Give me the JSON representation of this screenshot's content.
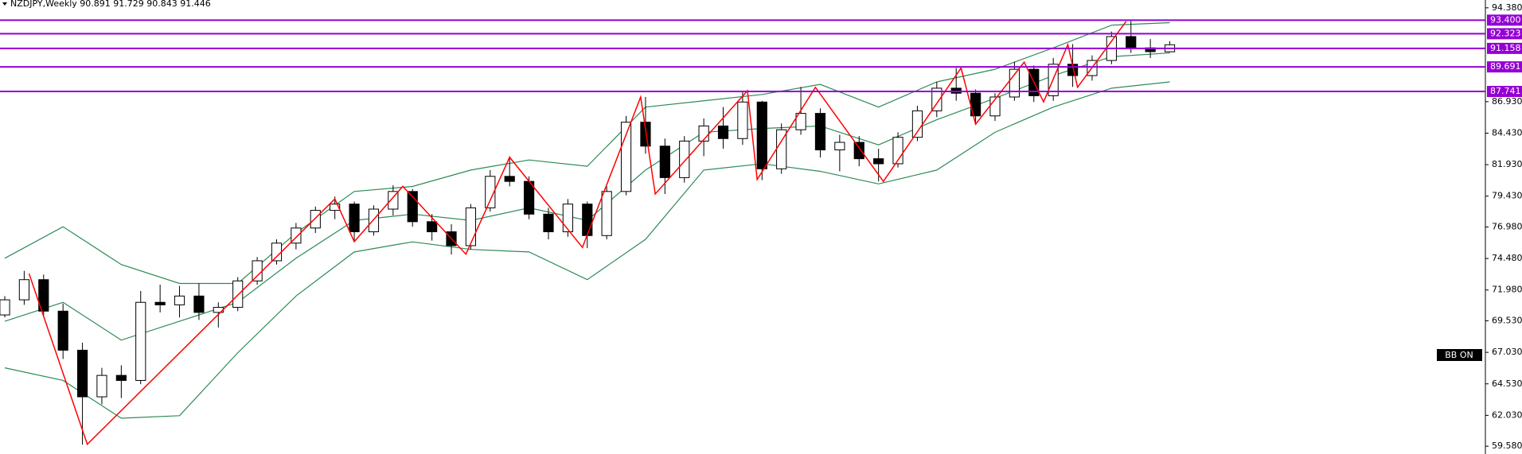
{
  "chart_data": {
    "type": "candlestick",
    "title": "NZDJPY,Weekly  90.891 91.729 90.843 91.446",
    "annotation": "BB ON",
    "x": [
      0,
      4,
      8,
      12,
      16,
      20,
      24,
      28,
      32,
      36,
      40,
      44,
      48,
      52,
      56,
      60,
      64,
      68,
      72,
      76,
      80,
      84,
      88,
      92,
      96,
      100,
      104,
      108,
      112,
      116,
      120,
      124,
      128,
      132,
      136,
      140,
      144,
      148,
      152,
      156,
      160,
      164,
      168,
      172,
      176,
      180,
      184,
      188,
      192,
      196,
      200,
      204,
      208,
      212,
      216,
      220,
      224,
      228,
      232,
      236,
      240
    ],
    "open": [
      70.0,
      71.2,
      72.8,
      70.3,
      67.2,
      63.5,
      65.2,
      64.8,
      71.0,
      70.8,
      71.5,
      70.2,
      70.6,
      72.7,
      74.3,
      75.7,
      76.9,
      78.3,
      78.8,
      76.6,
      78.4,
      79.8,
      77.4,
      76.6,
      75.5,
      78.5,
      81.0,
      80.6,
      78.0,
      76.6,
      78.8,
      76.3,
      79.8,
      85.3,
      83.4,
      80.9,
      83.8,
      85.0,
      84.0,
      86.9,
      81.6,
      84.7,
      86.0,
      83.1,
      83.7,
      82.4,
      82.0,
      84.1,
      86.2,
      88.0,
      87.6,
      85.8,
      87.3,
      89.5,
      87.4,
      89.9,
      89.0,
      90.2,
      92.1,
      91.2,
      90.891
    ],
    "high": [
      71.5,
      73.5,
      73.2,
      70.9,
      67.8,
      65.8,
      66.0,
      71.9,
      72.4,
      72.3,
      72.5,
      71.0,
      73.0,
      74.6,
      76.0,
      77.3,
      78.6,
      79.4,
      79.0,
      78.7,
      80.3,
      80.0,
      78.0,
      77.2,
      78.8,
      81.5,
      82.6,
      81.0,
      78.5,
      79.2,
      79.0,
      80.2,
      85.8,
      87.3,
      84.0,
      84.2,
      85.6,
      86.5,
      87.8,
      87.0,
      85.2,
      88.1,
      86.4,
      84.3,
      84.2,
      83.2,
      84.5,
      86.6,
      88.5,
      89.6,
      87.9,
      87.6,
      90.1,
      89.8,
      90.4,
      91.5,
      90.6,
      92.5,
      93.4,
      91.9,
      91.729
    ],
    "low": [
      69.8,
      70.8,
      69.9,
      66.5,
      59.7,
      62.9,
      63.4,
      64.5,
      70.2,
      69.8,
      69.6,
      69.0,
      70.3,
      72.4,
      74.0,
      75.2,
      76.5,
      77.6,
      75.8,
      76.3,
      77.9,
      77.0,
      75.9,
      74.8,
      75.2,
      78.2,
      80.2,
      77.6,
      76.0,
      76.2,
      75.3,
      76.0,
      79.5,
      82.8,
      79.6,
      80.5,
      82.6,
      83.2,
      83.5,
      80.7,
      81.2,
      84.3,
      82.5,
      81.4,
      81.8,
      80.6,
      81.7,
      83.8,
      85.7,
      87.0,
      85.1,
      85.4,
      87.0,
      86.9,
      87.0,
      88.1,
      88.6,
      89.9,
      90.8,
      90.4,
      90.843
    ],
    "close": [
      71.2,
      72.8,
      70.3,
      67.2,
      63.5,
      65.2,
      64.8,
      71.0,
      70.8,
      71.5,
      70.2,
      70.6,
      72.7,
      74.3,
      75.7,
      76.9,
      78.3,
      78.8,
      76.6,
      78.4,
      79.8,
      77.4,
      76.6,
      75.5,
      78.5,
      81.0,
      80.6,
      78.0,
      76.6,
      78.8,
      76.3,
      79.8,
      85.3,
      83.4,
      80.9,
      83.8,
      85.0,
      84.0,
      86.9,
      81.6,
      84.7,
      86.0,
      83.1,
      83.7,
      82.4,
      82.0,
      84.1,
      86.2,
      88.0,
      87.6,
      85.8,
      87.3,
      89.5,
      87.4,
      89.9,
      89.0,
      90.2,
      92.1,
      91.2,
      90.9,
      91.446
    ],
    "bands": {
      "color": "#2e8b57",
      "x": [
        0,
        12,
        24,
        36,
        48,
        60,
        72,
        84,
        96,
        108,
        120,
        132,
        144,
        156,
        168,
        180,
        192,
        204,
        216,
        228,
        240
      ],
      "upper": [
        74.5,
        77.0,
        74.0,
        72.5,
        72.5,
        76.5,
        79.8,
        80.2,
        81.5,
        82.3,
        81.8,
        86.5,
        87.0,
        87.5,
        88.3,
        86.5,
        88.5,
        89.5,
        91.2,
        93.0,
        93.2
      ],
      "middle": [
        69.5,
        71.0,
        68.0,
        69.5,
        71.0,
        74.5,
        77.5,
        78.0,
        77.5,
        78.5,
        77.5,
        81.5,
        84.5,
        84.8,
        85.0,
        83.5,
        85.5,
        87.2,
        89.0,
        90.5,
        90.8
      ],
      "lower": [
        65.8,
        64.8,
        61.8,
        62.0,
        67.0,
        71.5,
        75.0,
        75.8,
        75.2,
        75.0,
        72.8,
        76.0,
        81.5,
        82.0,
        81.4,
        80.4,
        81.5,
        84.5,
        86.5,
        88.0,
        88.5
      ]
    },
    "zigzag": {
      "color": "#ff0000",
      "x": [
        5,
        17,
        68,
        72,
        82,
        95,
        104,
        119,
        131,
        134,
        153,
        155,
        167,
        181,
        197,
        200,
        210,
        214,
        219,
        221,
        231
      ],
      "y": [
        73.28,
        59.73,
        79.21,
        75.82,
        80.21,
        74.82,
        82.52,
        75.36,
        87.3,
        79.6,
        87.8,
        80.75,
        88.07,
        80.6,
        89.6,
        85.14,
        90.07,
        86.91,
        91.46,
        88.07,
        93.3
      ]
    },
    "level_color": "#9400d3",
    "levels": [
      {
        "value": 93.4,
        "label": "93.400"
      },
      {
        "value": 92.323,
        "label": "92.323"
      },
      {
        "value": 91.158,
        "label": "91.158"
      },
      {
        "value": 89.691,
        "label": "89.691"
      },
      {
        "value": 87.741,
        "label": "87.741"
      }
    ],
    "xlim": [
      0,
      306
    ],
    "ylim": [
      58.96,
      95.0
    ],
    "yticks": [
      {
        "value": 94.38,
        "label": "94.380"
      },
      {
        "value": 86.93,
        "label": "86.930"
      },
      {
        "value": 84.43,
        "label": "84.430"
      },
      {
        "value": 81.93,
        "label": "81.930"
      },
      {
        "value": 79.43,
        "label": "79.430"
      },
      {
        "value": 76.98,
        "label": "76.980"
      },
      {
        "value": 74.48,
        "label": "74.480"
      },
      {
        "value": 71.98,
        "label": "71.980"
      },
      {
        "value": 69.53,
        "label": "69.530"
      },
      {
        "value": 67.03,
        "label": "67.030"
      },
      {
        "value": 64.53,
        "label": "64.530"
      },
      {
        "value": 62.03,
        "label": "62.030"
      },
      {
        "value": 59.58,
        "label": "59.580"
      }
    ]
  }
}
